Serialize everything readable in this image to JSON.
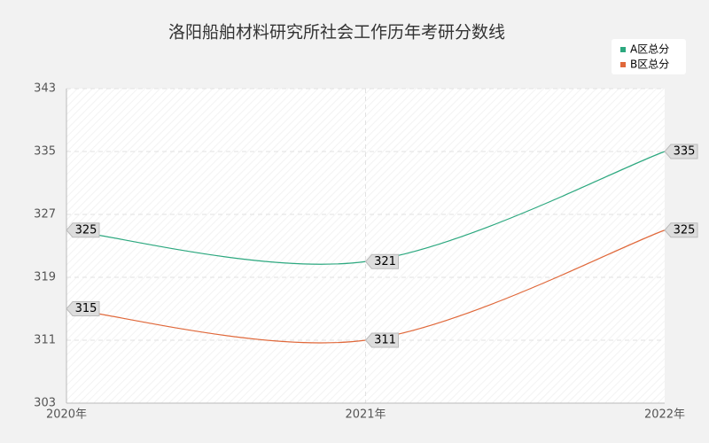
{
  "chart_data": {
    "type": "line",
    "title": "洛阳船舶材料研究所社会工作历年考研分数线",
    "categories": [
      "2020年",
      "2021年",
      "2022年"
    ],
    "series": [
      {
        "name": "A区总分",
        "color": "#2ca87f",
        "values": [
          325,
          321,
          335
        ]
      },
      {
        "name": "B区总分",
        "color": "#e0683a",
        "values": [
          315,
          311,
          325
        ]
      }
    ],
    "ylim": [
      303,
      343
    ],
    "yticks": [
      303,
      311,
      319,
      327,
      335,
      343
    ],
    "grid": true,
    "legend": "top-right"
  }
}
